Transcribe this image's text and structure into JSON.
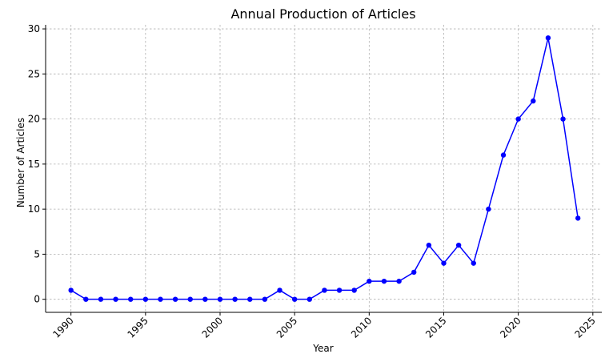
{
  "chart_data": {
    "type": "line",
    "title": "Annual Production of Articles",
    "xlabel": "Year",
    "ylabel": "Number of Articles",
    "xlim": [
      1988.3,
      2025.6
    ],
    "ylim": [
      -1.45,
      30.45
    ],
    "xticks": [
      1990,
      1995,
      2000,
      2005,
      2010,
      2015,
      2020,
      2025
    ],
    "yticks": [
      0,
      5,
      10,
      15,
      20,
      25,
      30
    ],
    "xtick_rotation": 45,
    "grid": true,
    "colors": {
      "series": "#0000ff",
      "grid": "#b0b0b0"
    },
    "series": [
      {
        "marker": "circle",
        "x": [
          1990,
          1991,
          1992,
          1993,
          1994,
          1995,
          1996,
          1997,
          1998,
          1999,
          2000,
          2001,
          2002,
          2003,
          2004,
          2005,
          2006,
          2007,
          2008,
          2009,
          2010,
          2011,
          2012,
          2013,
          2014,
          2015,
          2016,
          2017,
          2018,
          2019,
          2020,
          2021,
          2022,
          2023,
          2024
        ],
        "values": [
          1,
          0,
          0,
          0,
          0,
          0,
          0,
          0,
          0,
          0,
          0,
          0,
          0,
          0,
          1,
          0,
          0,
          1,
          1,
          1,
          2,
          2,
          2,
          3,
          6,
          4,
          6,
          4,
          10,
          16,
          20,
          22,
          29,
          20,
          9
        ]
      }
    ]
  }
}
